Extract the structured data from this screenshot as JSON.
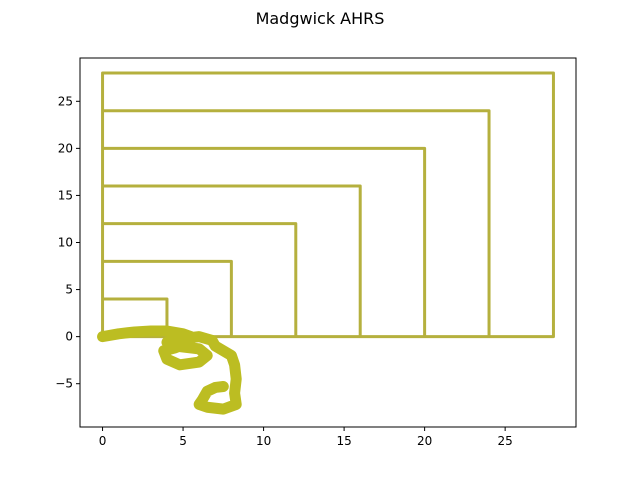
{
  "chart_data": {
    "type": "line",
    "title": "Madgwick AHRS",
    "xlabel": "",
    "ylabel": "",
    "xlim": [
      -1.4,
      29.4
    ],
    "ylim": [
      -9.6,
      29.6
    ],
    "x_ticks": [
      0,
      5,
      10,
      15,
      20,
      25
    ],
    "y_ticks": [
      -5,
      0,
      5,
      10,
      15,
      20,
      25
    ],
    "grid": false,
    "legend": "none",
    "series": [
      {
        "style": "reference-path",
        "color": "#b5b03e",
        "points": [
          [
            0,
            0
          ],
          [
            0,
            4
          ],
          [
            4,
            4
          ],
          [
            4,
            0
          ],
          [
            0,
            0
          ],
          [
            0,
            8
          ],
          [
            8,
            8
          ],
          [
            8,
            0
          ],
          [
            0,
            0
          ],
          [
            0,
            12
          ],
          [
            12,
            12
          ],
          [
            12,
            0
          ],
          [
            0,
            0
          ],
          [
            0,
            16
          ],
          [
            16,
            16
          ],
          [
            16,
            0
          ],
          [
            0,
            0
          ],
          [
            0,
            20
          ],
          [
            20,
            20
          ],
          [
            20,
            0
          ],
          [
            0,
            0
          ],
          [
            0,
            24
          ],
          [
            24,
            24
          ],
          [
            24,
            0
          ],
          [
            0,
            0
          ],
          [
            0,
            28
          ],
          [
            28,
            28
          ],
          [
            28,
            0
          ],
          [
            0,
            0
          ]
        ]
      },
      {
        "style": "estimated-trajectory",
        "color": "#bcbd22",
        "points": [
          [
            0,
            0
          ],
          [
            1,
            0.3
          ],
          [
            2,
            0.5
          ],
          [
            3,
            0.6
          ],
          [
            4,
            0.6
          ],
          [
            5,
            0.3
          ],
          [
            5.5,
            0
          ],
          [
            5.4,
            -0.6
          ],
          [
            4.5,
            -1.2
          ],
          [
            3.8,
            -1.5
          ],
          [
            4,
            -2.4
          ],
          [
            4.8,
            -3
          ],
          [
            6,
            -2.7
          ],
          [
            6.5,
            -2
          ],
          [
            6,
            -1.3
          ],
          [
            4.5,
            -1
          ],
          [
            4,
            -0.6
          ],
          [
            5,
            -0.2
          ],
          [
            6,
            0
          ],
          [
            6.8,
            -0.4
          ],
          [
            7,
            -1
          ],
          [
            7.5,
            -1.5
          ],
          [
            8,
            -2
          ],
          [
            8.2,
            -3
          ],
          [
            8.3,
            -4.5
          ],
          [
            8.2,
            -6
          ],
          [
            8.3,
            -7.2
          ],
          [
            7.5,
            -7.7
          ],
          [
            6.5,
            -7.5
          ],
          [
            6,
            -7.2
          ],
          [
            6.2,
            -6.7
          ],
          [
            6.5,
            -5.8
          ],
          [
            7,
            -5.4
          ],
          [
            7.5,
            -5.3
          ]
        ]
      }
    ]
  }
}
